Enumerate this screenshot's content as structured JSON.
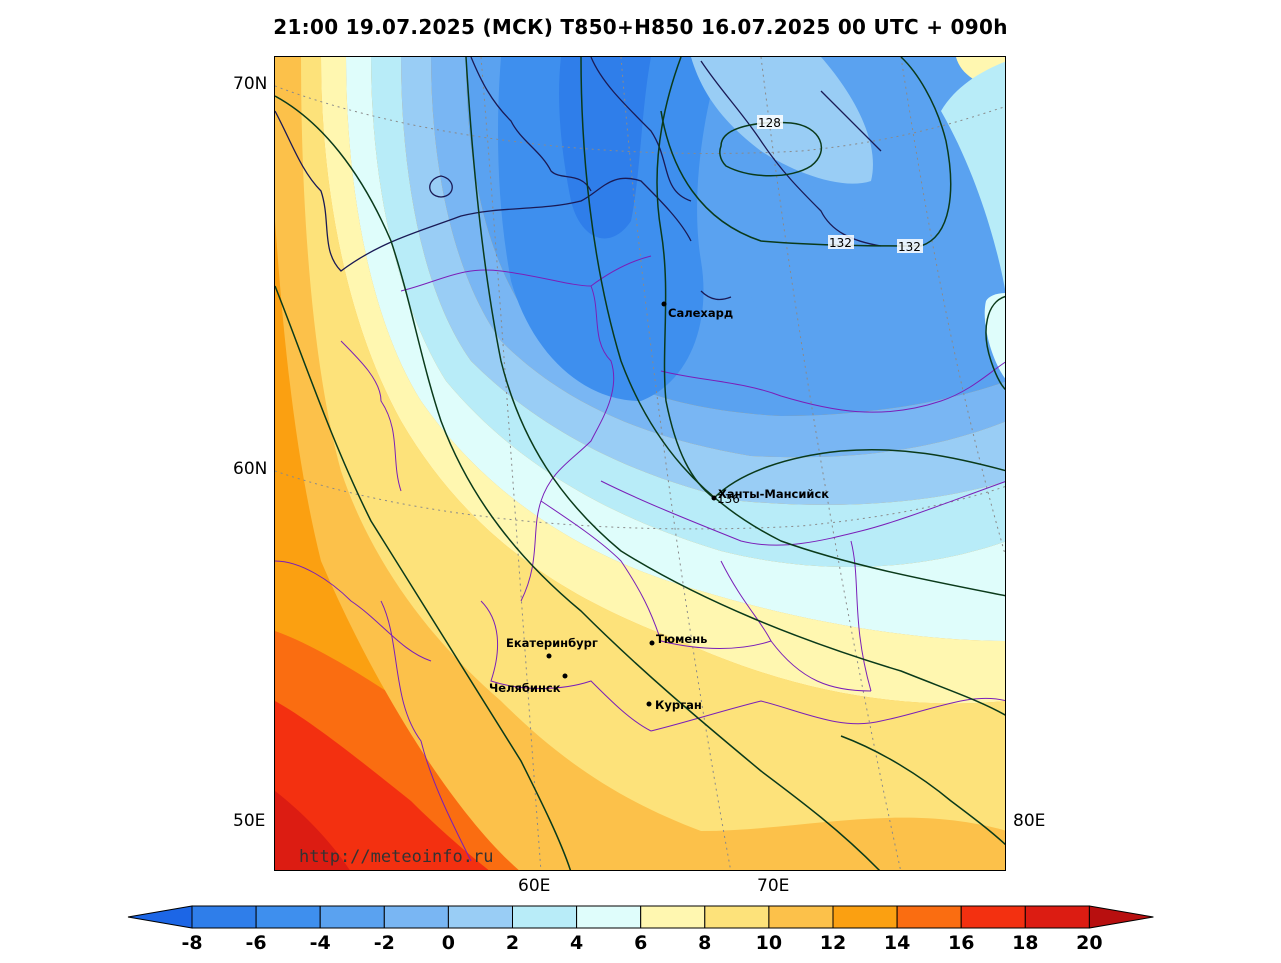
{
  "title": "21:00 19.07.2025 (МСК) T850+H850 16.07.2025 00 UTC + 090h",
  "axes": {
    "lat_labels": [
      "70N",
      "60N",
      "50E"
    ],
    "lon_labels": [
      "60E",
      "70E",
      "80E"
    ]
  },
  "cities": [
    {
      "name": "Салехард"
    },
    {
      "name": "Ханты-Мансийск"
    },
    {
      "name": "Екатеринбург"
    },
    {
      "name": "Тюмень"
    },
    {
      "name": "Челябинск"
    },
    {
      "name": "Курган"
    }
  ],
  "contour_labels": [
    "128",
    "132",
    "132",
    "136"
  ],
  "watermark": "http://meteoinfo.ru",
  "colorbar": {
    "labels": [
      "-8",
      "-6",
      "-4",
      "-2",
      "0",
      "2",
      "4",
      "6",
      "8",
      "10",
      "12",
      "14",
      "16",
      "18",
      "20"
    ],
    "colors": [
      "#1c66e6",
      "#2f7eea",
      "#3e8fee",
      "#5aa2f0",
      "#79b6f3",
      "#99cdf5",
      "#b8ecf8",
      "#dffdfb",
      "#fff7b0",
      "#fde27a",
      "#fcc14a",
      "#fba011",
      "#fa6d11",
      "#f33010",
      "#dc1c12",
      "#b80f0f"
    ]
  },
  "legend_colors": {
    "border": "#7a1fb8",
    "coastline": "#1a1a55",
    "isohypse": "#0a3a1a"
  }
}
